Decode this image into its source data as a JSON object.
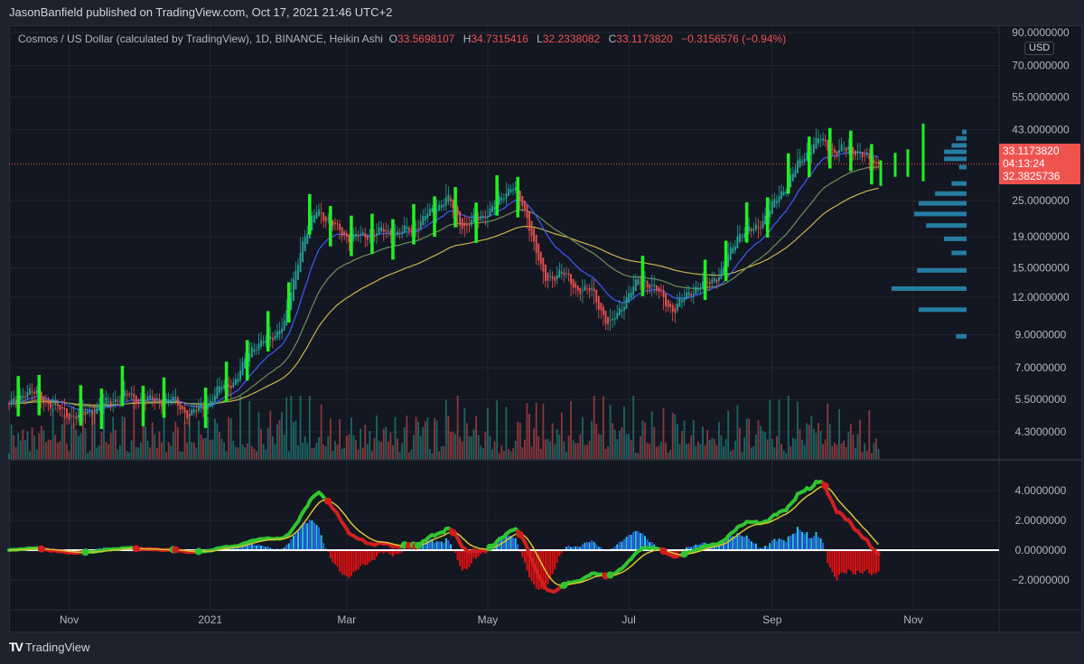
{
  "header": {
    "published": "JasonBanfield published on TradingView.com, Oct 17, 2021 21:46 UTC+2"
  },
  "legend": {
    "symbol": "Cosmos / US Dollar (calculated by TradingView), 1D, BINANCE, Heikin Ashi",
    "o_label": "O",
    "o": "33.5698107",
    "h_label": "H",
    "h": "34.7315416",
    "l_label": "L",
    "l": "32.2338082",
    "c_label": "C",
    "c": "33.1173820",
    "change": "−0.3156576 (−0.94%)"
  },
  "price_axis": {
    "currency": "USD",
    "ticks": [
      {
        "value": 90,
        "label": "90.0000000"
      },
      {
        "value": 70,
        "label": "70.0000000"
      },
      {
        "value": 55,
        "label": "55.0000000"
      },
      {
        "value": 43,
        "label": "43.0000000"
      },
      {
        "value": 25,
        "label": "25.0000000"
      },
      {
        "value": 19,
        "label": "19.0000000"
      },
      {
        "value": 15,
        "label": "15.0000000"
      },
      {
        "value": 12,
        "label": "12.0000000"
      },
      {
        "value": 9,
        "label": "9.0000000"
      },
      {
        "value": 7,
        "label": "7.0000000"
      },
      {
        "value": 5.5,
        "label": "5.5000000"
      },
      {
        "value": 4.3,
        "label": "4.3000000"
      }
    ],
    "last_price": "33.1173820",
    "countdown": "04:13:24",
    "second_value": "32.3825736"
  },
  "indicator_axis": {
    "ticks": [
      {
        "value": 4,
        "label": "4.0000000"
      },
      {
        "value": 2,
        "label": "2.0000000"
      },
      {
        "value": 0,
        "label": "0.0000000"
      },
      {
        "value": -2,
        "label": "−2.0000000"
      }
    ]
  },
  "time_axis": {
    "ticks": [
      {
        "date": "2020-11-01",
        "label": "Nov"
      },
      {
        "date": "2021-01-01",
        "label": "2021"
      },
      {
        "date": "2021-03-01",
        "label": "Mar"
      },
      {
        "date": "2021-05-01",
        "label": "May"
      },
      {
        "date": "2021-07-01",
        "label": "Jul"
      },
      {
        "date": "2021-09-01",
        "label": "Sep"
      },
      {
        "date": "2021-11-01",
        "label": "Nov"
      }
    ]
  },
  "footer": {
    "brand": "TradingView"
  },
  "colors": {
    "background": "#131722",
    "up": "#26a69a",
    "down": "#ef5350",
    "signal_bar": "#22ee22",
    "ema_fast": "#3d5afe",
    "ema_mid": "#6d8f5a",
    "ema_slow": "#c8b44a",
    "macd_up": "#2fc52f",
    "macd_down": "#d11f1f",
    "macd_signal": "#d6c534",
    "hist_pos": "#2bc6e6",
    "hist_neg": "#e01010",
    "volume_profile": "#2a8fb8"
  },
  "chart_data": {
    "type": "candlestick",
    "style": "Heikin Ashi",
    "y_scale": "log",
    "ylim": [
      4.0,
      95
    ],
    "grid": true,
    "closes_weekly": [
      [
        "2020-10-06",
        5.21
      ],
      [
        "2020-10-13",
        5.9
      ],
      [
        "2020-10-20",
        5.55
      ],
      [
        "2020-10-27",
        5.1
      ],
      [
        "2020-11-03",
        4.8
      ],
      [
        "2020-11-10",
        5.04
      ],
      [
        "2020-11-17",
        5.35
      ],
      [
        "2020-11-24",
        5.7
      ],
      [
        "2020-12-01",
        5.5
      ],
      [
        "2020-12-08",
        5.45
      ],
      [
        "2020-12-15",
        5.5
      ],
      [
        "2020-12-22",
        4.9
      ],
      [
        "2020-12-29",
        5.2
      ],
      [
        "2021-01-05",
        6.0
      ],
      [
        "2021-01-12",
        6.4
      ],
      [
        "2021-01-19",
        8.3
      ],
      [
        "2021-01-26",
        8.6
      ],
      [
        "2021-02-02",
        10.0
      ],
      [
        "2021-02-09",
        18.0
      ],
      [
        "2021-02-16",
        23.5
      ],
      [
        "2021-02-23",
        20.5
      ],
      [
        "2021-03-02",
        18.8
      ],
      [
        "2021-03-09",
        19.2
      ],
      [
        "2021-03-16",
        19.8
      ],
      [
        "2021-03-23",
        19.5
      ],
      [
        "2021-03-30",
        20.4
      ],
      [
        "2021-04-06",
        23.0
      ],
      [
        "2021-04-13",
        25.5
      ],
      [
        "2021-04-20",
        20.5
      ],
      [
        "2021-04-27",
        22.0
      ],
      [
        "2021-05-04",
        24.0
      ],
      [
        "2021-05-11",
        28.5
      ],
      [
        "2021-05-18",
        21.5
      ],
      [
        "2021-05-25",
        13.5
      ],
      [
        "2021-06-01",
        14.6
      ],
      [
        "2021-06-08",
        12.8
      ],
      [
        "2021-06-15",
        12.5
      ],
      [
        "2021-06-22",
        9.5
      ],
      [
        "2021-06-29",
        11.8
      ],
      [
        "2021-07-06",
        13.9
      ],
      [
        "2021-07-13",
        12.5
      ],
      [
        "2021-07-20",
        10.8
      ],
      [
        "2021-07-27",
        12.6
      ],
      [
        "2021-08-03",
        13.2
      ],
      [
        "2021-08-10",
        14.6
      ],
      [
        "2021-08-17",
        19.5
      ],
      [
        "2021-08-24",
        20.0
      ],
      [
        "2021-08-31",
        23.5
      ],
      [
        "2021-09-07",
        28.5
      ],
      [
        "2021-09-14",
        35.0
      ],
      [
        "2021-09-21",
        40.0
      ],
      [
        "2021-09-28",
        36.0
      ],
      [
        "2021-10-05",
        37.5
      ],
      [
        "2021-10-12",
        34.0
      ],
      [
        "2021-10-17",
        33.117382
      ]
    ],
    "volume_profile": [
      {
        "price": 42.2,
        "relative": 0.06
      },
      {
        "price": 40.2,
        "relative": 0.14
      },
      {
        "price": 38.1,
        "relative": 0.2
      },
      {
        "price": 36.3,
        "relative": 0.3
      },
      {
        "price": 34.4,
        "relative": 0.3
      },
      {
        "price": 32.3,
        "relative": 0.1
      },
      {
        "price": 28.5,
        "relative": 0.2
      },
      {
        "price": 26.4,
        "relative": 0.42
      },
      {
        "price": 24.5,
        "relative": 0.64
      },
      {
        "price": 22.6,
        "relative": 0.7
      },
      {
        "price": 20.7,
        "relative": 0.54
      },
      {
        "price": 18.7,
        "relative": 0.3
      },
      {
        "price": 16.8,
        "relative": 0.2
      },
      {
        "price": 14.7,
        "relative": 0.66
      },
      {
        "price": 12.8,
        "relative": 1.0
      },
      {
        "price": 10.9,
        "relative": 0.64
      },
      {
        "price": 8.9,
        "relative": 0.14
      }
    ],
    "indicator": {
      "type": "macd",
      "ylim": [
        -3.2,
        6
      ]
    }
  }
}
